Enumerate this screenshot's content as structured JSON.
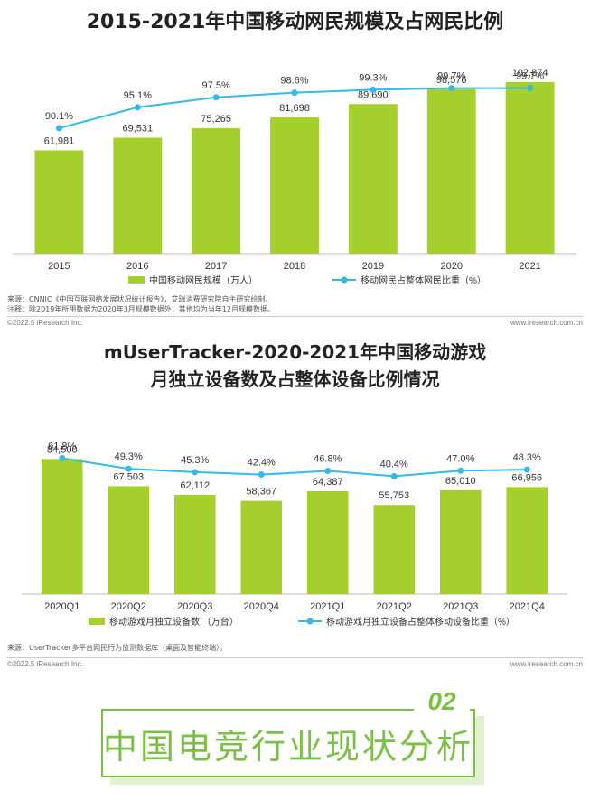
{
  "chart1": {
    "title": "2015-2021年中国移动网民规模及占网民比例",
    "chart_data": {
      "type": "bar",
      "categories": [
        "2015",
        "2016",
        "2017",
        "2018",
        "2019",
        "2020",
        "2021"
      ],
      "series": [
        {
          "name": "中国移动网民规模（万人）",
          "type": "bar",
          "values": [
            61981,
            69531,
            75265,
            81698,
            89690,
            98576,
            102874
          ],
          "labels": [
            "61,981",
            "69,531",
            "75,265",
            "81,698",
            "89,690",
            "98,576",
            "102,874"
          ]
        },
        {
          "name": "移动网民占整体网民比重（%）",
          "type": "line",
          "values": [
            90.1,
            95.1,
            97.5,
            98.6,
            99.3,
            99.7,
            99.7
          ],
          "labels": [
            "90.1%",
            "95.1%",
            "97.5%",
            "98.6%",
            "99.3%",
            "99.7%",
            "99.7%"
          ]
        }
      ],
      "ylim": [
        0,
        125000
      ],
      "line_ylim": [
        60,
        110
      ]
    },
    "source_lines": [
      "来源：CNNIC《中国互联网络发展状况统计报告》，艾瑞消费研究院自主研究绘制。",
      "注释：除2019年所用数据为2020年3月规模数据外，其他均为当年12月规模数据。"
    ],
    "copyright": "©2022.5 iResearch Inc.",
    "website": "www.iresearch.com.cn"
  },
  "chart2": {
    "title_line1": "mUserTracker-2020-2021年中国移动游戏",
    "title_line2": "月独立设备数及占整体设备比例情况",
    "chart_data": {
      "type": "bar",
      "categories": [
        "2020Q1",
        "2020Q2",
        "2020Q3",
        "2020Q4",
        "2021Q1",
        "2021Q2",
        "2021Q3",
        "2021Q4"
      ],
      "series": [
        {
          "name": "移动游戏月独立设备数 （万台）",
          "type": "bar",
          "values": [
            84500,
            67503,
            62112,
            58367,
            64387,
            55753,
            65010,
            66956
          ],
          "labels": [
            "84,500",
            "67,503",
            "62,112",
            "58,367",
            "64,387",
            "55,753",
            "65,010",
            "66,956"
          ]
        },
        {
          "name": "移动游戏月独立设备占整体移动设备比重（%）",
          "type": "line",
          "values": [
            61.8,
            49.3,
            45.3,
            42.4,
            46.8,
            40.4,
            47.0,
            48.3
          ],
          "labels": [
            "61.8%",
            "49.3%",
            "45.3%",
            "42.4%",
            "46.8%",
            "40.4%",
            "47.0%",
            "48.3%"
          ]
        }
      ],
      "ylim": [
        0,
        105000
      ],
      "line_ylim": [
        -100,
        100
      ]
    },
    "source_lines": [
      "来源：UserTracker多平台网民行为监测数据库（桌面及智能终端）。"
    ],
    "copyright": "©2022.5 iResearch Inc.",
    "website": "www.iresearch.com.cn"
  },
  "section": {
    "number": "02",
    "title": "中国电竞行业现状分析"
  },
  "colors": {
    "bar": "#a5cf2d",
    "line": "#35b9e6",
    "accent": "#7ac143"
  }
}
